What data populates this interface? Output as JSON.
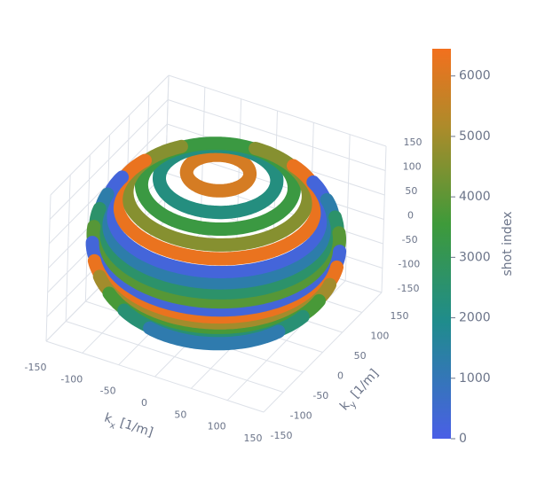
{
  "chart_data": {
    "type": "scatter3d",
    "xlabel": [
      "k",
      "x",
      " [1/m]"
    ],
    "ylabel": [
      "k",
      "y",
      " [1/m]"
    ],
    "xlim": [
      -150,
      150
    ],
    "ylim": [
      -150,
      150
    ],
    "zlim": [
      -150,
      150
    ],
    "xticks": [
      -150,
      -100,
      -50,
      0,
      50,
      100,
      150
    ],
    "yticks": [
      -150,
      -100,
      -50,
      0,
      50,
      100,
      150
    ],
    "zticks": [
      -150,
      -100,
      -50,
      0,
      50,
      100,
      150
    ],
    "radius": 150,
    "z": [
      145,
      132,
      118,
      102,
      86,
      68,
      50,
      32,
      14,
      -4,
      -22,
      -40,
      -58,
      -76,
      -94,
      -112,
      -128,
      -142
    ],
    "values": [
      5900,
      2200,
      3400,
      4600,
      6300,
      250,
      1300,
      2600,
      3900,
      300,
      6300,
      5000,
      3700,
      2400,
      1200,
      6300,
      3800,
      2000
    ],
    "colorbar_title": "shot index",
    "colorlim": [
      0,
      6450
    ],
    "colorticks": [
      0,
      1000,
      2000,
      3000,
      4000,
      5000,
      6000
    ],
    "colorscale": [
      [
        0,
        "#4a5fe6"
      ],
      [
        0.3,
        "#1f8c8c"
      ],
      [
        0.55,
        "#3e9a3a"
      ],
      [
        0.8,
        "#ad8b2a"
      ],
      [
        1,
        "#f2701e"
      ]
    ],
    "grid": true
  }
}
